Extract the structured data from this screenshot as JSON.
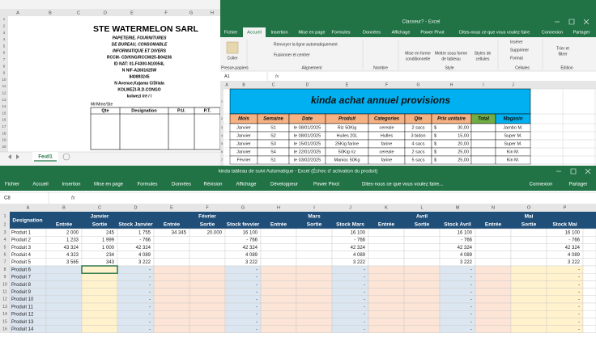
{
  "invoice_window": {
    "column_letters": [
      "A",
      "B",
      "C",
      "D",
      "E",
      "F",
      "G",
      "H"
    ],
    "row_numbers": [
      1,
      2,
      3,
      4,
      5,
      6,
      7,
      8,
      9,
      10,
      11,
      12,
      13,
      14,
      15,
      16,
      17,
      18,
      19,
      20
    ],
    "company": "STE WATERMELON SARL",
    "details": [
      "PAPETERIE, FOURNITURES",
      "DE BUREAU, CONSOMABLE",
      "INFORMATIQUE ET DIVERS",
      "RCCM- CD/KNG/RCCM/25-B04236",
      "ID NAT: 01-F4300-N10054L",
      "N NIF-A2601625W",
      "840893245",
      "N Avenue,Kajama C/Dilala",
      "KOLWEZI-R.D.CONGO",
      "kolwezi lré    /    /"
    ],
    "recipient": "Mr/Mme/Ste",
    "table_headers": [
      "Qte",
      "Designation",
      "P.U.",
      "P.T."
    ],
    "sheet_tab": "Feuil1"
  },
  "purchases_window": {
    "title": "Classeur? - Excel",
    "tabs": [
      "Fichier",
      "Accueil",
      "Insertion",
      "Mise en page",
      "Formules",
      "Données",
      "Affichage",
      "Power Pivot"
    ],
    "search": "Dites-nous ce que vous voulez faire",
    "account": "Connexion",
    "share": "Partager",
    "ribbon": [
      "Coller",
      "Presse-papiers",
      "Renvoyer la ligne automatiquement",
      "Fusionner et centrer",
      "Alignement",
      "Nombre",
      "Mise en forme",
      "conditionnelle",
      "Mettre sous forme",
      "de tableau",
      "Styles de",
      "cellules",
      "Style",
      "Insérer",
      "Supprimer",
      "Format",
      "Cellules",
      "Trier et",
      "filtrer",
      "Édition"
    ],
    "name_box": "A1",
    "formula_label": "fx",
    "column_letters": [
      "A",
      "B",
      "C",
      "D",
      "E",
      "F",
      "G",
      "H",
      "I",
      "J"
    ],
    "row_numbers": [
      1,
      2,
      3,
      4,
      5,
      6,
      7,
      8
    ],
    "sheet_title": "kinda achat annuel provisions",
    "headers": [
      "Mois",
      "Semaine",
      "Date",
      "Produit",
      "Categories",
      "Qte",
      "Prix unitaire",
      "Total",
      "Magasin"
    ],
    "rows": [
      [
        "Janvier",
        "S1",
        "le 08/01/2025",
        "Riz 50Kig",
        "cereale",
        "2 sacs",
        "$",
        "30,00",
        null,
        "Jambo M."
      ],
      [
        "Janvier",
        "S2",
        "le 08/01/2025",
        "Huiles 20L",
        "Hulles",
        "3 bidon",
        "$",
        "15,00",
        null,
        "Super M."
      ],
      [
        "Janvier",
        "S3",
        "le 15/01/2025",
        "25Kig farine",
        "farine",
        "4 sacs",
        "$",
        "20,00",
        null,
        "Super M."
      ],
      [
        "Janvier",
        "S4",
        "le 22/01/2025",
        "50Kig riz",
        "cereale",
        "2 sacs",
        "$",
        "25,00",
        null,
        "Kin M."
      ],
      [
        "Février",
        "S1",
        "le 03/02/2025",
        "Manioc 50Kg",
        "farine",
        "5 sacs",
        "$",
        "25,00",
        null,
        "Kin M."
      ]
    ]
  },
  "stock_window": {
    "title": "kinda tableau de suivi Automatique - Excel (Échec d' activation du produit)",
    "tabs": [
      "Fichier",
      "Accueil",
      "Insertion",
      "Mise en page",
      "Formules",
      "Données",
      "Révision",
      "Affichage",
      "Développeur",
      "Power Pivot"
    ],
    "search": "Dites-nous ce que vous voulez faire...",
    "account": "Connexion",
    "share": "Partager",
    "name_box": "C8",
    "formula_label": "fx",
    "column_letters": [
      "A",
      "B",
      "C",
      "D",
      "E",
      "F",
      "G",
      "H",
      "I",
      "J",
      "K",
      "L",
      "M",
      "N",
      "O",
      "P"
    ],
    "row_numbers": [
      1,
      2,
      3,
      4,
      5,
      6,
      7,
      8,
      9,
      10,
      11,
      12,
      13,
      14,
      15,
      16
    ],
    "corner_header": "Designation",
    "months": [
      "Janvier",
      "Février",
      "Mars",
      "Avril",
      "Mai"
    ],
    "subheaders": [
      "Entrée",
      "Sortie",
      "Stock Janvier",
      "Entrée",
      "Sortie",
      "Stock fevvier",
      "Entrée",
      "Sortie",
      "Stock Mars",
      "Entrée",
      "Sortie",
      "Stock Avril",
      "Entrée",
      "Sortie",
      "Stock Mai"
    ],
    "rows": [
      [
        "Produit 1",
        "2 000",
        "245",
        "1 755",
        "34 345",
        "20.000",
        "16 100",
        null,
        null,
        "16 100",
        null,
        null,
        "16 100",
        null,
        null,
        "16 100"
      ],
      [
        "Produit 2",
        "1 233",
        "1 999",
        "- 766",
        null,
        null,
        "- 766",
        null,
        null,
        "- 766",
        null,
        null,
        "- 766",
        null,
        null,
        "- 766"
      ],
      [
        "Produit 3",
        "43 324",
        "1 000",
        "42 324",
        null,
        null,
        "42 324",
        null,
        null,
        "42 324",
        null,
        null,
        "42 324",
        null,
        null,
        "42 324"
      ],
      [
        "Produit 4",
        "4 323",
        "234",
        "4 089",
        null,
        null,
        "4 089",
        null,
        null,
        "4 089",
        null,
        null,
        "4 089",
        null,
        null,
        "4 089"
      ],
      [
        "Produit 5",
        "3 565",
        "343",
        "3 222",
        null,
        null,
        "3 222",
        null,
        null,
        "3 222",
        null,
        null,
        "3 222",
        null,
        null,
        "3 222"
      ],
      [
        "Produit 6",
        null,
        null,
        "-",
        null,
        null,
        "-",
        null,
        null,
        "-",
        null,
        null,
        "-",
        null,
        null,
        "-"
      ],
      [
        "Produit 7",
        null,
        null,
        "-",
        null,
        null,
        "-",
        null,
        null,
        "-",
        null,
        null,
        "-",
        null,
        null,
        "-"
      ],
      [
        "Produit 8",
        null,
        null,
        "-",
        null,
        null,
        "-",
        null,
        null,
        "-",
        null,
        null,
        "-",
        null,
        null,
        "-"
      ],
      [
        "Produit 9",
        null,
        null,
        "-",
        null,
        null,
        "-",
        null,
        null,
        "-",
        null,
        null,
        "-",
        null,
        null,
        "-"
      ],
      [
        "Produit 10",
        null,
        null,
        "-",
        null,
        null,
        "-",
        null,
        null,
        "-",
        null,
        null,
        "-",
        null,
        null,
        "-"
      ],
      [
        "Produit 11",
        null,
        null,
        "-",
        null,
        null,
        "-",
        null,
        null,
        "-",
        null,
        null,
        "-",
        null,
        null,
        "-"
      ],
      [
        "Produit 12",
        null,
        null,
        "-",
        null,
        null,
        "-",
        null,
        null,
        "-",
        null,
        null,
        "-",
        null,
        null,
        "-"
      ],
      [
        "Produit 13",
        null,
        null,
        "-",
        null,
        null,
        "-",
        null,
        null,
        "-",
        null,
        null,
        "-",
        null,
        null,
        "-"
      ],
      [
        "Produit 14",
        null,
        null,
        "-",
        null,
        null,
        "-",
        null,
        null,
        "-",
        null,
        null,
        "-",
        null,
        null,
        "-"
      ]
    ]
  }
}
